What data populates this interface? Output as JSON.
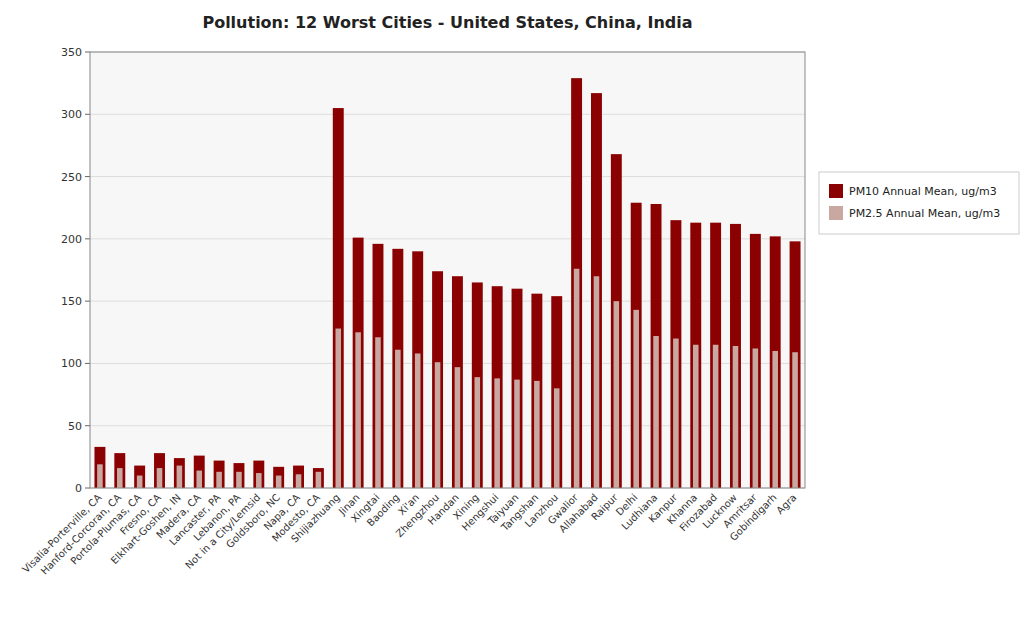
{
  "chart_data": {
    "type": "bar",
    "title": "Pollution: 12 Worst Cities - United States, China, India",
    "categories": [
      "Visalia-Porterville, CA",
      "Hanford-Corcoran, CA",
      "Portola-Plumas, CA",
      "Fresno, CA",
      "Elkhart-Goshen, IN",
      "Madera, CA",
      "Lancaster, PA",
      "Lebanon, PA",
      "Not in a City/Lemsid",
      "Goldsboro, NC",
      "Napa, CA",
      "Modesto, CA",
      "Shijiazhuang",
      "Jinan",
      "Xingtai",
      "Baoding",
      "Xi'an",
      "Zhengzhou",
      "Handan",
      "Xining",
      "Hengshui",
      "Taiyuan",
      "Tangshan",
      "Lanzhou",
      "Gwalior",
      "Allahabad",
      "Raipur",
      "Delhi",
      "Ludhiana",
      "Kanpur",
      "Khanna",
      "Firozabad",
      "Lucknow",
      "Amritsar",
      "Gobindigarh",
      "Agra"
    ],
    "series": [
      {
        "name": "PM10 Annual Mean, ug/m3",
        "color": "#8b0000",
        "values": [
          33,
          28,
          18,
          28,
          24,
          26,
          22,
          20,
          22,
          17,
          18,
          16,
          305,
          201,
          196,
          192,
          190,
          174,
          170,
          165,
          162,
          160,
          156,
          154,
          329,
          317,
          268,
          229,
          228,
          215,
          213,
          213,
          212,
          204,
          202,
          198
        ]
      },
      {
        "name": "PM2.5 Annual Mean, ug/m3",
        "color": "#c8a8a0",
        "values": [
          19,
          16,
          10,
          16,
          18,
          14,
          13,
          13,
          12,
          10,
          11,
          13,
          128,
          125,
          121,
          111,
          108,
          101,
          97,
          89,
          88,
          87,
          86,
          80,
          176,
          170,
          150,
          143,
          122,
          120,
          115,
          115,
          114,
          112,
          110,
          109
        ]
      }
    ],
    "ylim": [
      0,
      350
    ],
    "yticks": [
      0,
      50,
      100,
      150,
      200,
      250,
      300,
      350
    ],
    "grid": true,
    "legend": "right"
  }
}
